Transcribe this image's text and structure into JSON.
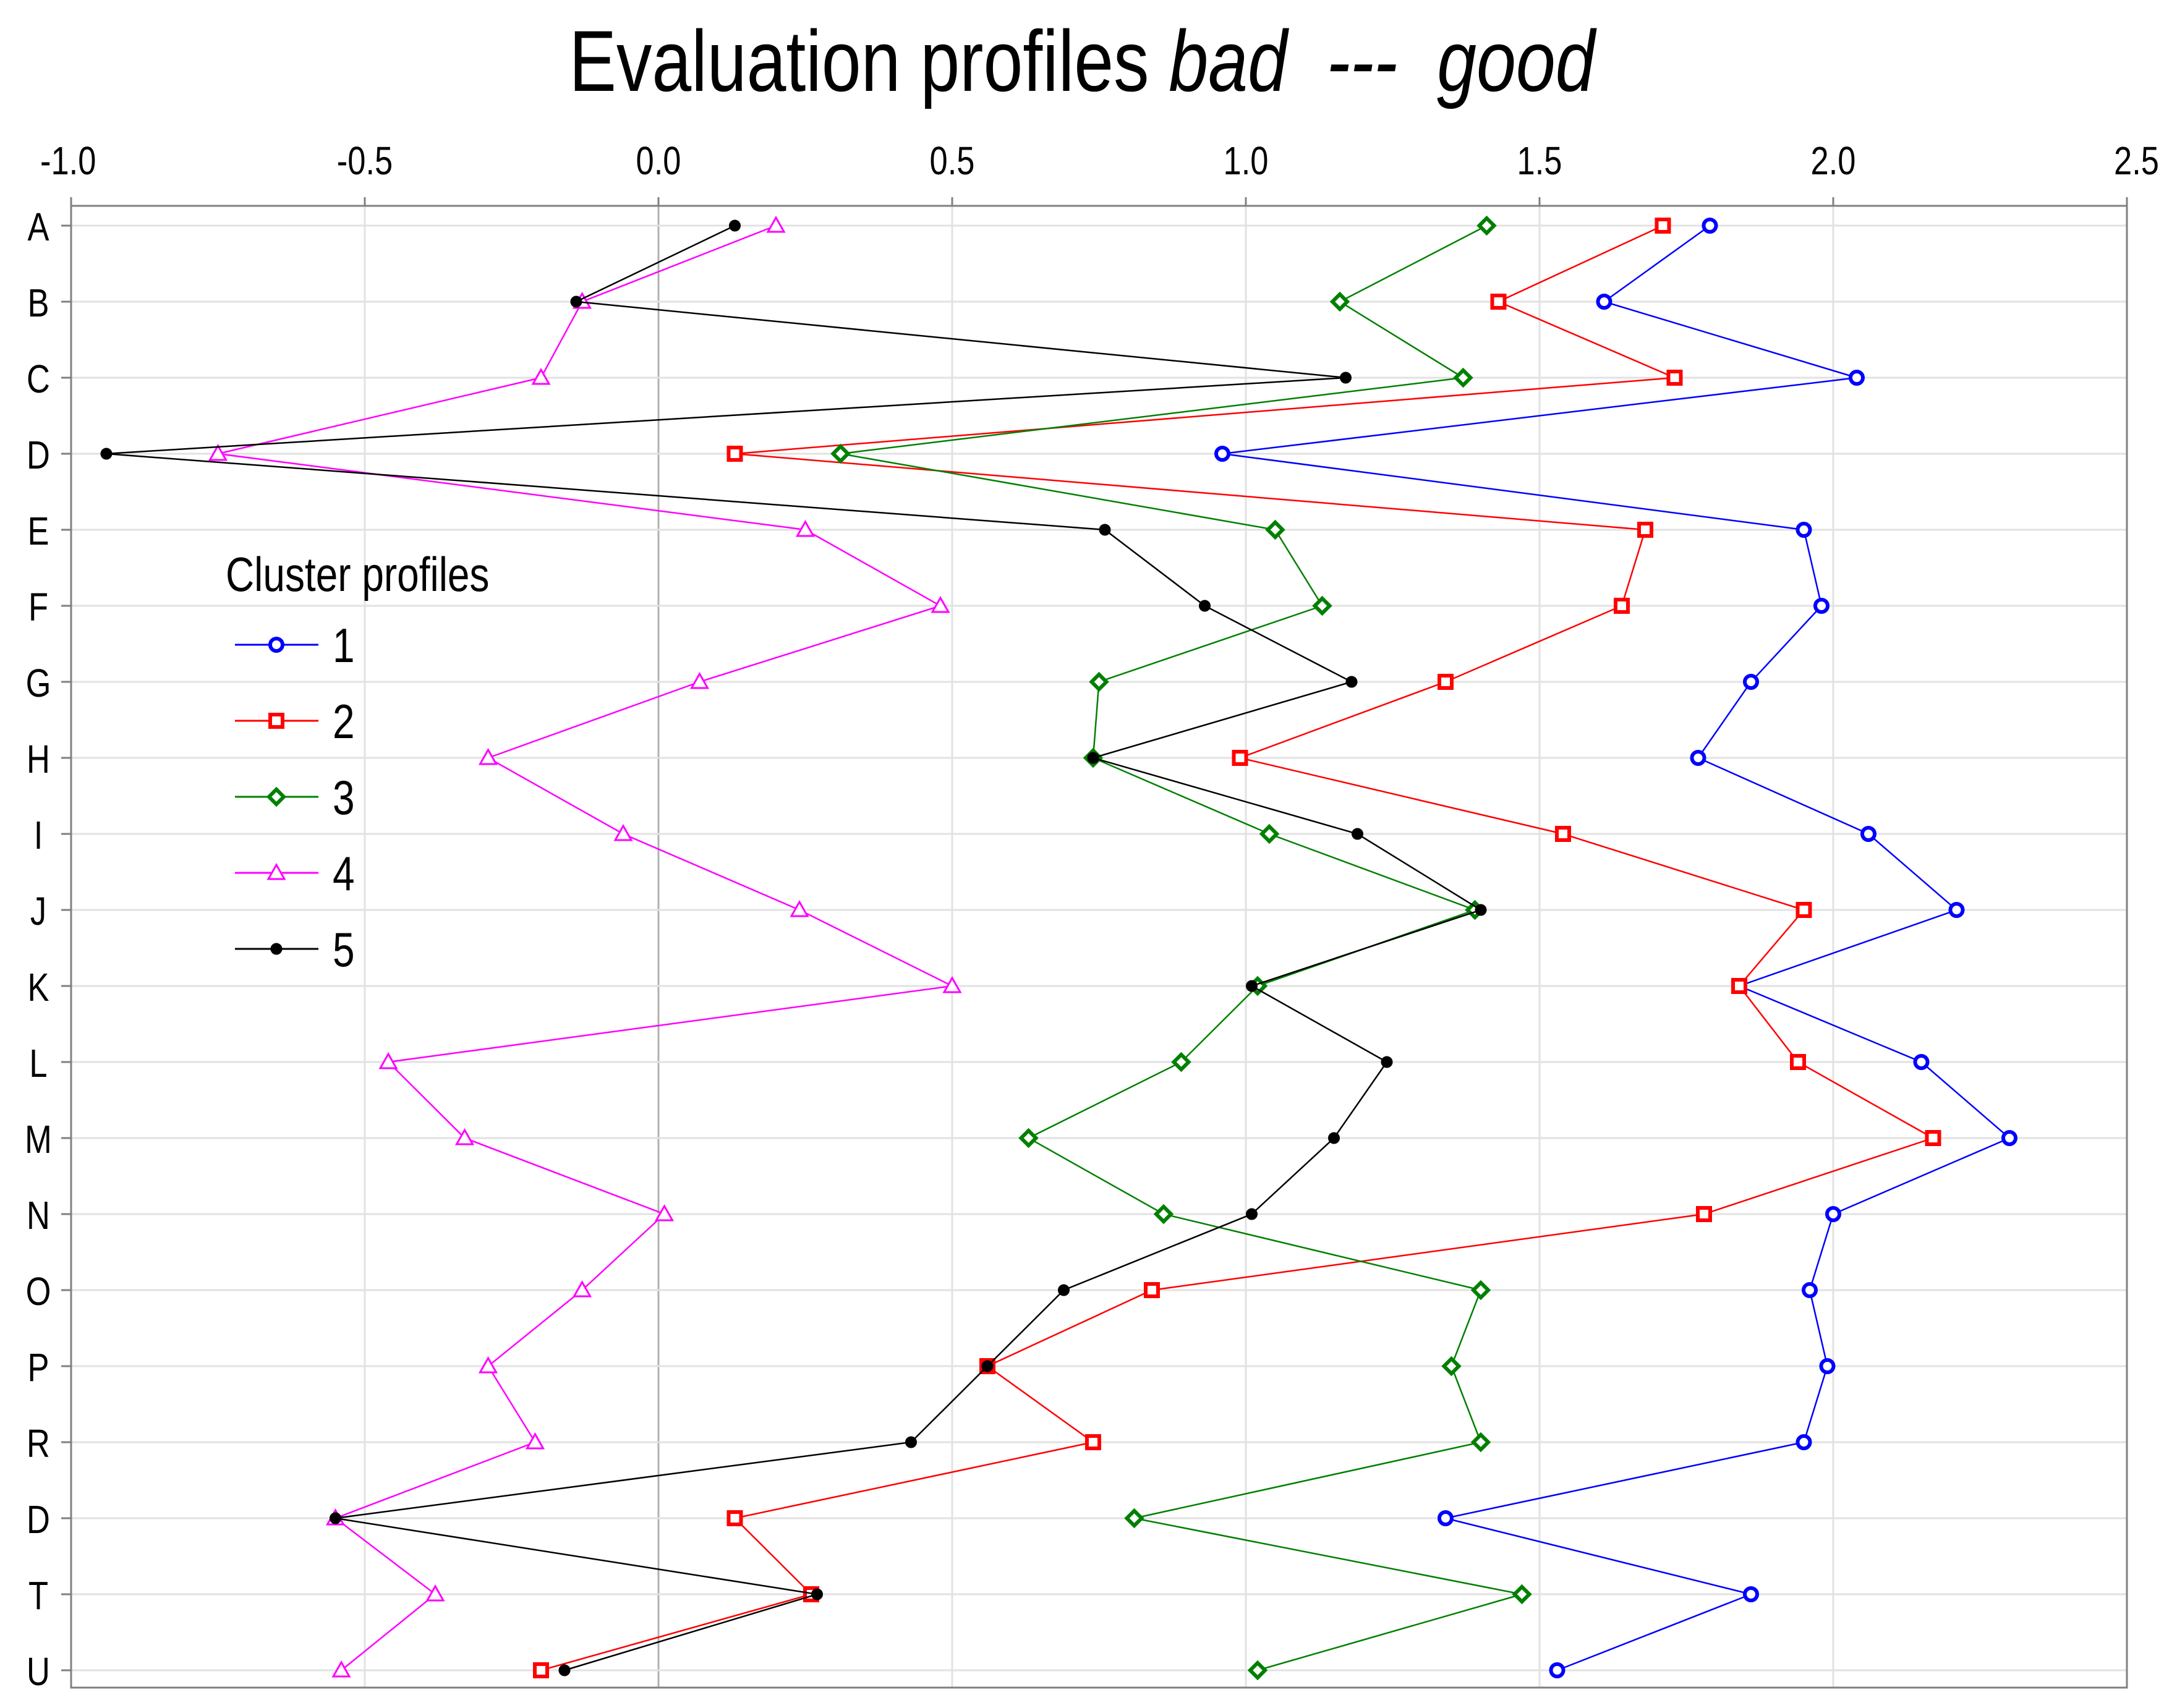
{
  "chart_data": {
    "type": "line",
    "title_main": "Evaluation profiles",
    "title_bad": "bad",
    "title_sep": "---",
    "title_good": "good",
    "xlim": [
      -1.0,
      2.5
    ],
    "x_ticks": [
      "-1.0",
      "-0.5",
      "0.0",
      "0.5",
      "1.0",
      "1.5",
      "2.0",
      "2.5"
    ],
    "x_tick_values": [
      -1.0,
      -0.5,
      0.0,
      0.5,
      1.0,
      1.5,
      2.0,
      2.5
    ],
    "categories": [
      "A",
      "B",
      "C",
      "D",
      "E",
      "F",
      "G",
      "H",
      "I",
      "J",
      "K",
      "L",
      "M",
      "N",
      "O",
      "P",
      "R",
      "D",
      "T",
      "U"
    ],
    "grid": true,
    "legend": {
      "title": "Cluster profiles",
      "position": "left-middle"
    },
    "series": [
      {
        "name": "1",
        "color": "#0000ff",
        "marker": "circle",
        "values": [
          1.79,
          1.61,
          2.04,
          0.96,
          1.95,
          1.98,
          1.86,
          1.77,
          2.06,
          2.21,
          1.84,
          2.15,
          2.3,
          2.0,
          1.96,
          1.99,
          1.95,
          1.34,
          1.86,
          1.53
        ]
      },
      {
        "name": "2",
        "color": "#ff0000",
        "marker": "square",
        "values": [
          1.71,
          1.43,
          1.73,
          0.13,
          1.68,
          1.64,
          1.34,
          0.99,
          1.54,
          1.95,
          1.84,
          1.94,
          2.17,
          1.78,
          0.84,
          0.56,
          0.74,
          0.13,
          0.26,
          -0.2
        ]
      },
      {
        "name": "3",
        "color": "#008000",
        "marker": "diamond",
        "values": [
          1.41,
          1.16,
          1.37,
          0.31,
          1.05,
          1.13,
          0.75,
          0.74,
          1.04,
          1.39,
          1.02,
          0.89,
          0.63,
          0.86,
          1.4,
          1.35,
          1.4,
          0.81,
          1.47,
          1.02
        ]
      },
      {
        "name": "4",
        "color": "#ff00ff",
        "marker": "triangle",
        "values": [
          0.2,
          -0.13,
          -0.2,
          -0.75,
          0.25,
          0.48,
          0.07,
          -0.29,
          -0.06,
          0.24,
          0.5,
          -0.46,
          -0.33,
          0.01,
          -0.13,
          -0.29,
          -0.21,
          -0.55,
          -0.38,
          -0.54
        ]
      },
      {
        "name": "5",
        "color": "#000000",
        "marker": "dot",
        "values": [
          0.13,
          -0.14,
          1.17,
          -0.94,
          0.76,
          0.93,
          1.18,
          0.74,
          1.19,
          1.4,
          1.01,
          1.24,
          1.15,
          1.01,
          0.69,
          0.56,
          0.43,
          -0.55,
          0.27,
          -0.16
        ]
      }
    ]
  }
}
